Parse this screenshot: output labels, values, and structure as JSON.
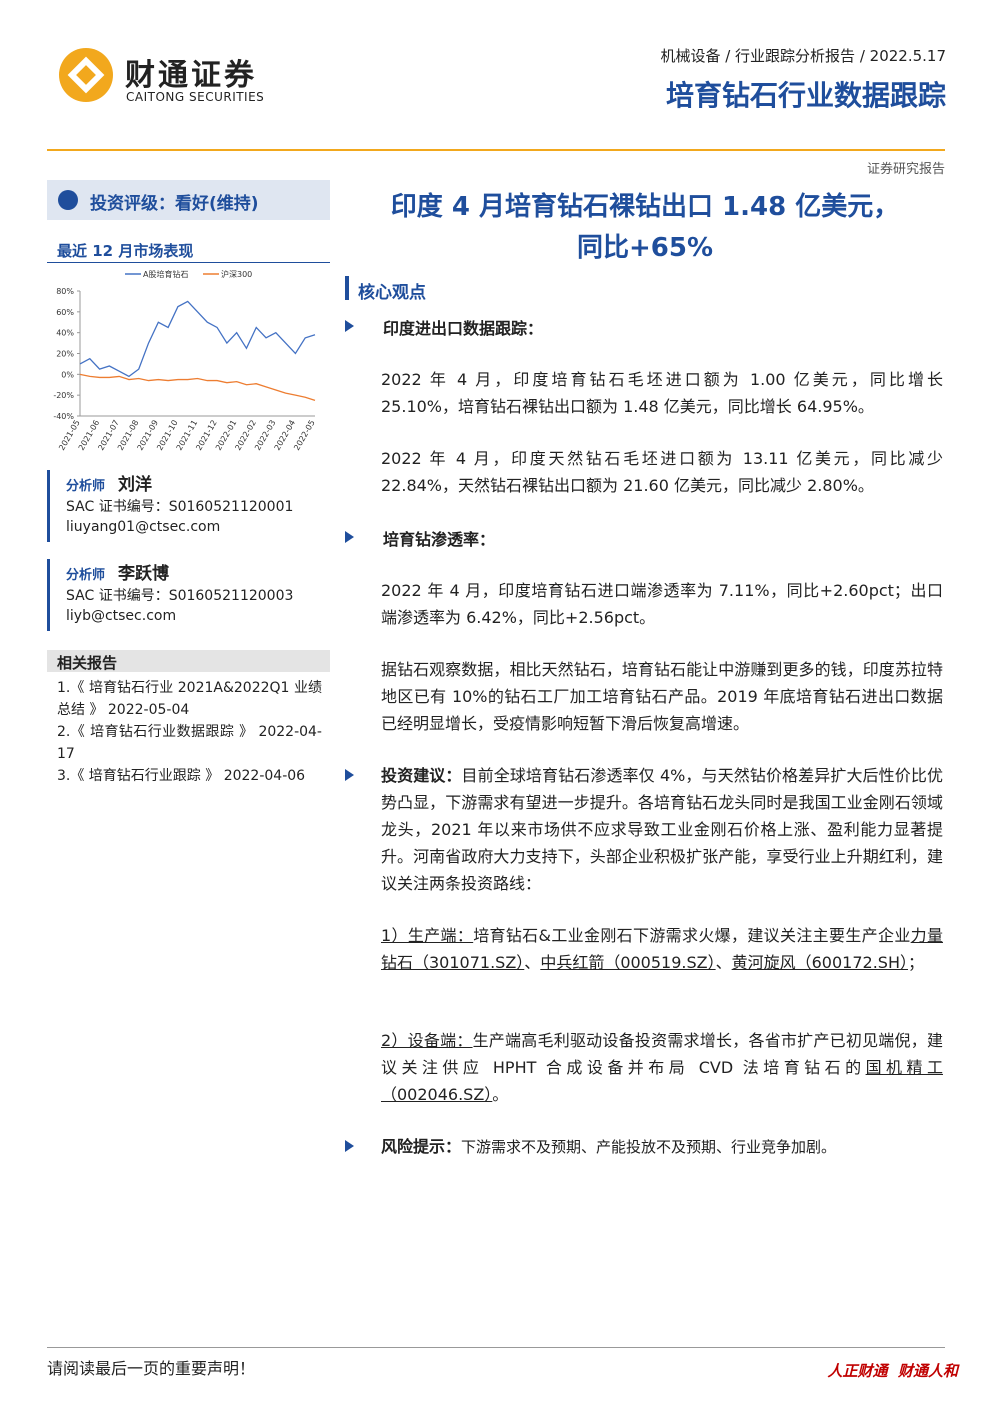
{
  "header": {
    "logo_cn": "财通证券",
    "logo_en": "CAITONG SECURITIES",
    "breadcrumb": "机械设备 / 行业跟踪分析报告 / 2022.5.17",
    "title": "培育钻石行业数据跟踪",
    "report_type": "证券研究报告"
  },
  "sidebar": {
    "rating": "投资评级：看好(维持)",
    "market_title": "最近 12 月市场表现",
    "analysts": [
      {
        "role": "分析师",
        "name": "刘洋",
        "sac": "SAC 证书编号：S0160521120001",
        "email": "liuyang01@ctsec.com"
      },
      {
        "role": "分析师",
        "name": "李跃博",
        "sac": "SAC 证书编号：S0160521120003",
        "email": "liyb@ctsec.com"
      }
    ],
    "related_title": "相关报告",
    "related": [
      "1.《 培育钻石行业 2021A&2022Q1 业绩总结 》 2022-05-04",
      "2.《 培育钻石行业数据跟踪 》 2022-04-17",
      "3.《 培育钻石行业跟踪 》 2022-04-06"
    ]
  },
  "chart_data": {
    "type": "line",
    "categories": [
      "2021-05",
      null,
      "2021-06",
      null,
      "2021-07",
      null,
      "2021-08",
      null,
      "2021-09",
      null,
      "2021-10",
      null,
      "2021-11",
      null,
      "2021-12",
      null,
      "2022-01",
      null,
      "2022-02",
      null,
      "2022-03",
      null,
      "2022-04",
      null,
      "2022-05"
    ],
    "series": [
      {
        "name": "A股培育钻石",
        "color": "#4472c4",
        "values": [
          10,
          15,
          5,
          8,
          3,
          -2,
          5,
          30,
          50,
          45,
          65,
          70,
          60,
          50,
          45,
          30,
          40,
          25,
          45,
          35,
          40,
          30,
          20,
          35,
          38
        ]
      },
      {
        "name": "沪深300",
        "color": "#ed7d31",
        "values": [
          0,
          -2,
          -3,
          -3,
          -2,
          -5,
          -4,
          -6,
          -5,
          -6,
          -5,
          -5,
          -4,
          -6,
          -6,
          -8,
          -7,
          -10,
          -9,
          -12,
          -15,
          -18,
          -20,
          -22,
          -25
        ]
      }
    ],
    "ylim": [
      -40,
      80
    ],
    "yticks": [
      {
        "value": -40,
        "label": "-40%"
      },
      {
        "value": -20,
        "label": "-20%"
      },
      {
        "value": 0,
        "label": "0%"
      },
      {
        "value": 20,
        "label": "20%"
      },
      {
        "value": 40,
        "label": "40%"
      },
      {
        "value": 60,
        "label": "60%"
      },
      {
        "value": 80,
        "label": "80%"
      }
    ]
  },
  "main": {
    "title_line1": "印度 4 月培育钻石裸钻出口 1.48 亿美元，",
    "title_line2": "同比+65%",
    "section": "核心观点",
    "bullet1": "印度进出口数据跟踪：",
    "p1": "2022 年 4 月，印度培育钻石毛坯进口额为 1.00 亿美元，同比增长 25.10%，培育钻石裸钻出口额为 1.48 亿美元，同比增长 64.95%。",
    "p2": "2022 年 4 月，印度天然钻石毛坯进口额为 13.11 亿美元，同比减少 22.84%，天然钻石裸钻出口额为 21.60 亿美元，同比减少 2.80%。",
    "bullet2": "培育钻渗透率：",
    "p3": "2022 年 4 月，印度培育钻石进口端渗透率为 7.11%，同比+2.60pct；出口端渗透率为 6.42%，同比+2.56pct。",
    "p4": "据钻石观察数据，相比天然钻石，培育钻石能让中游赚到更多的钱，印度苏拉特地区已有 10%的钻石工厂加工培育钻石产品。2019 年底培育钻石进出口数据已经明显增长，受疫情影响短暂下滑后恢复高增速。",
    "bullet3_label": "投资建议：",
    "bullet3_text": "目前全球培育钻石渗透率仅 4%，与天然钻价格差异扩大后性价比优势凸显，下游需求有望进一步提升。各培育钻石龙头同时是我国工业金刚石领域龙头，2021 年以来市场供不应求导致工业金刚石价格上涨、盈利能力显著提升。河南省政府大力支持下，头部企业积极扩张产能，享受行业上升期红利，建议关注两条投资路线：",
    "p5": [
      "1）生产端：",
      "培育钻石&工业金刚石下游需求火爆，建议关注主要生产企业",
      "力量钻石（301071.SZ）",
      "、",
      "中兵红箭（000519.SZ）",
      "、",
      "黄河旋风（600172.SH）",
      "；"
    ],
    "p6": [
      "2）设备端：",
      "生产端高毛利驱动设备投资需求增长，各省市扩产已初见端倪，建议关注供应 HPHT 合成设备并布局 CVD 法培育钻石的",
      "国机精工（002046.SZ）",
      "。"
    ],
    "bullet4_label": "风险提示：",
    "bullet4_text": "下游需求不及预期、产能投放不及预期、行业竞争加剧。"
  },
  "footer": {
    "notice": "请阅读最后一页的重要声明！",
    "slogan": "人正财通  财通人和"
  }
}
